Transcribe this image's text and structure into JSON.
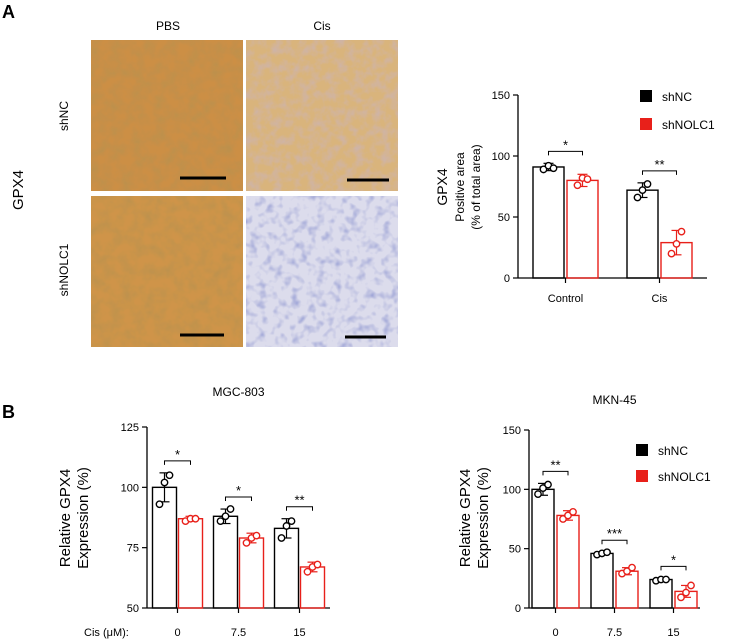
{
  "panels": {
    "a_letter": "A",
    "b_letter": "B",
    "a_side_label": "GPX4"
  },
  "micrographs": {
    "col_labels": [
      "PBS",
      "Cis"
    ],
    "row_labels": [
      "shNC",
      "shNOLC1"
    ],
    "stain_brown": "#c98c3b",
    "stain_blue": "#3f4fa8"
  },
  "legend": {
    "entries": [
      {
        "name": "shNC",
        "color": "#000000"
      },
      {
        "name": "shNOLC1",
        "color": "#e8201a"
      }
    ]
  },
  "cis_axis_label": "Cis (μM):",
  "chart_data": [
    {
      "id": "chartA",
      "type": "bar",
      "title": "",
      "categories": [
        "Control",
        "Cis"
      ],
      "ylabel_lines": [
        "GPX4",
        "Positive area",
        "(% of total area)"
      ],
      "ylim": [
        0,
        150
      ],
      "yticks": [
        0,
        50,
        100,
        150
      ],
      "legend": "top-right",
      "series": [
        {
          "name": "shNC",
          "color": "#000000",
          "values": [
            91,
            72
          ],
          "errors": [
            3,
            6
          ],
          "points": [
            [
              89,
              92,
              90
            ],
            [
              66,
              72,
              77
            ]
          ]
        },
        {
          "name": "shNOLC1",
          "color": "#e8201a",
          "values": [
            80,
            29
          ],
          "errors": [
            5,
            10
          ],
          "points": [
            [
              76,
              82,
              81
            ],
            [
              20,
              28,
              38
            ]
          ]
        }
      ],
      "significance": [
        "*",
        "**"
      ]
    },
    {
      "id": "chartB1",
      "type": "bar",
      "title": "MGC-803",
      "categories": [
        "0",
        "7.5",
        "15"
      ],
      "ylabel_lines": [
        "Relative GPX4",
        "Expression (%)"
      ],
      "ylim": [
        50,
        125
      ],
      "yticks": [
        50,
        75,
        100,
        125
      ],
      "series": [
        {
          "name": "shNC",
          "color": "#000000",
          "values": [
            100,
            88,
            83
          ],
          "errors": [
            6,
            3,
            4
          ],
          "points": [
            [
              93,
              102,
              105
            ],
            [
              86,
              88,
              91
            ],
            [
              79,
              84,
              86
            ]
          ]
        },
        {
          "name": "shNOLC1",
          "color": "#e8201a",
          "values": [
            87,
            79,
            67
          ],
          "errors": [
            1,
            2,
            2
          ],
          "points": [
            [
              86,
              87,
              87
            ],
            [
              77,
              79,
              80
            ],
            [
              65,
              67,
              68
            ]
          ]
        }
      ],
      "significance": [
        "*",
        "*",
        "**"
      ]
    },
    {
      "id": "chartB2",
      "type": "bar",
      "title": "MKN-45",
      "categories": [
        "0",
        "7.5",
        "15"
      ],
      "ylabel_lines": [
        "Relative GPX4",
        "Expression (%)"
      ],
      "ylim": [
        0,
        150
      ],
      "yticks": [
        0,
        50,
        100,
        150
      ],
      "legend": "top-right",
      "series": [
        {
          "name": "shNC",
          "color": "#000000",
          "values": [
            100,
            46,
            24
          ],
          "errors": [
            5,
            1,
            1
          ],
          "points": [
            [
              96,
              101,
              104
            ],
            [
              45,
              46,
              47
            ],
            [
              23,
              24,
              24
            ]
          ]
        },
        {
          "name": "shNOLC1",
          "color": "#e8201a",
          "values": [
            78,
            31,
            14
          ],
          "errors": [
            4,
            3,
            5
          ],
          "points": [
            [
              75,
              78,
              81
            ],
            [
              29,
              31,
              34
            ],
            [
              9,
              13,
              19
            ]
          ]
        }
      ],
      "significance": [
        "**",
        "***",
        "*"
      ]
    }
  ]
}
